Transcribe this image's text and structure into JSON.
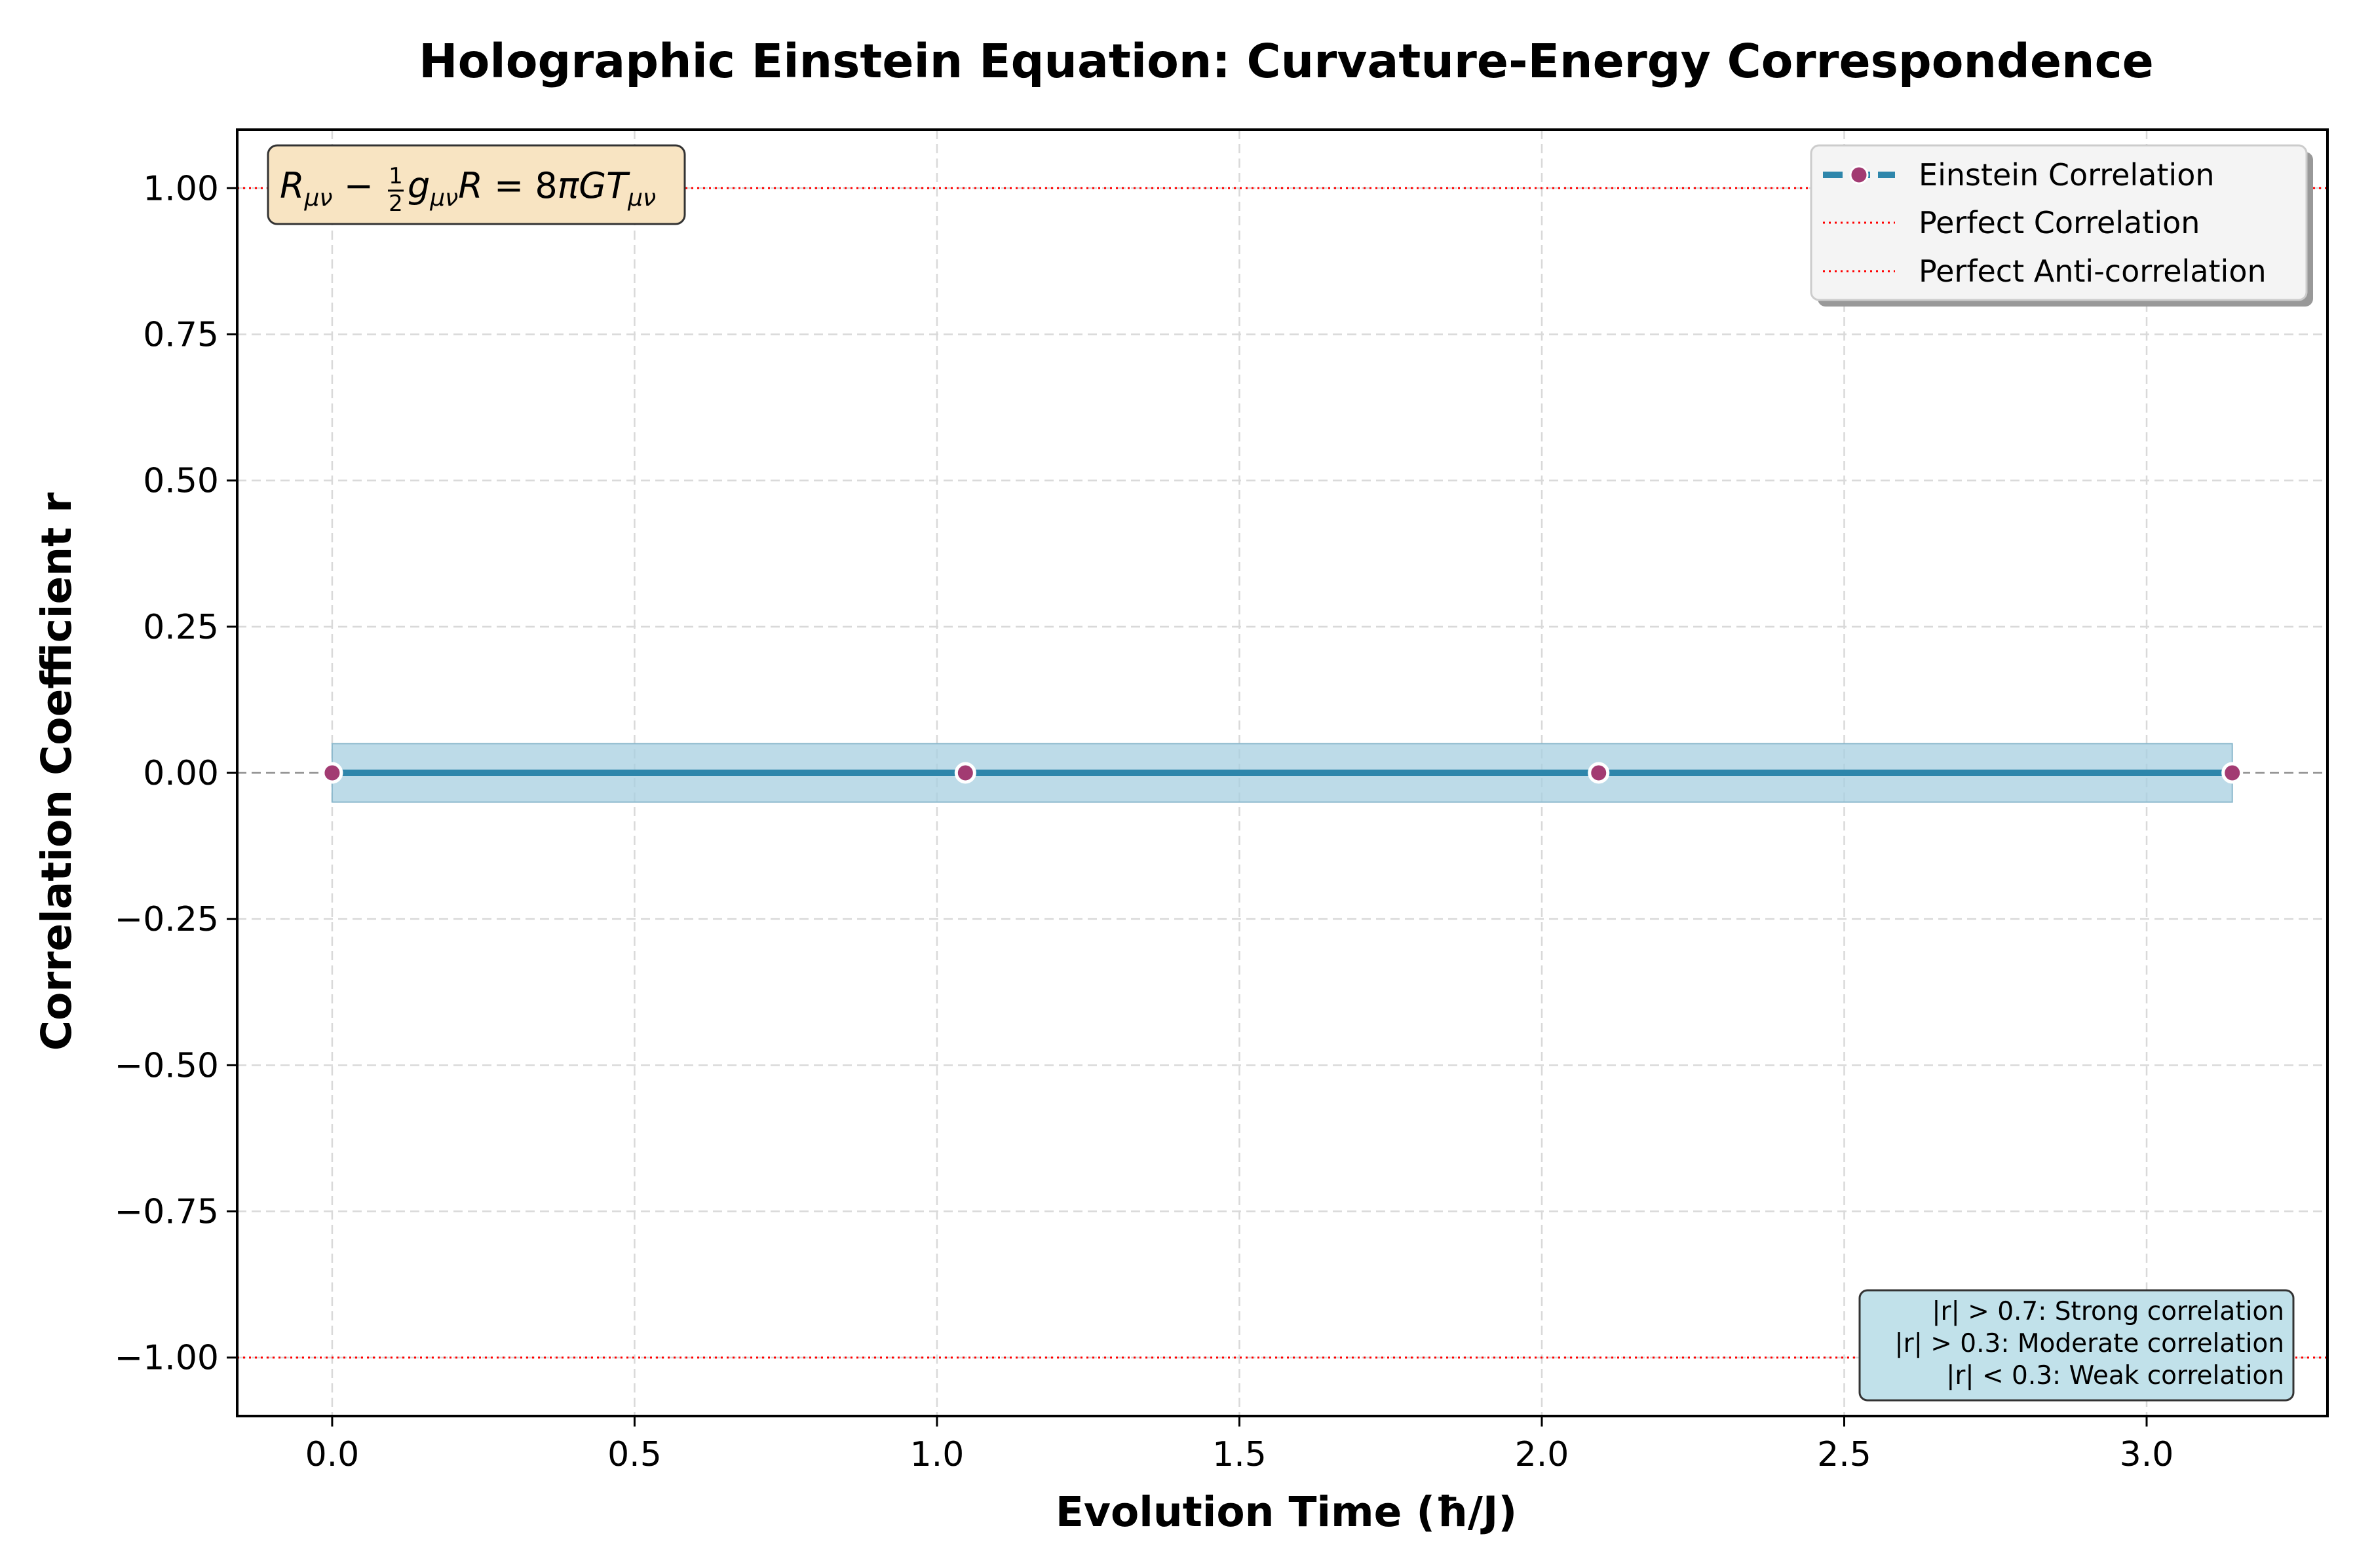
{
  "chart_data": {
    "type": "line",
    "title": "Holographic Einstein Equation: Curvature-Energy Correspondence",
    "xlabel": "Evolution Time (ħ/J)",
    "ylabel": "Correlation Coefficient r",
    "xlim": [
      -0.157,
      3.299
    ],
    "ylim": [
      -1.1,
      1.1
    ],
    "x_ticks": [
      0.0,
      0.5,
      1.0,
      1.5,
      2.0,
      2.5,
      3.0
    ],
    "x_tick_labels": [
      "0.0",
      "0.5",
      "1.0",
      "1.5",
      "2.0",
      "2.5",
      "3.0"
    ],
    "y_ticks": [
      1.0,
      0.75,
      0.5,
      0.25,
      0.0,
      -0.25,
      -0.5,
      -0.75,
      -1.0
    ],
    "y_tick_labels": [
      "1.00",
      "0.75",
      "0.50",
      "0.25",
      "0.00",
      "−0.25",
      "−0.50",
      "−0.75",
      "−1.00"
    ],
    "grid": true,
    "legend_position": "upper right",
    "series": [
      {
        "name": "Einstein Correlation",
        "x": [
          0.0,
          1.047,
          2.094,
          3.1416
        ],
        "y": [
          0.0,
          0.0,
          0.0,
          0.0
        ],
        "band_upper": [
          0.05,
          0.05,
          0.05,
          0.05
        ],
        "band_lower": [
          -0.05,
          -0.05,
          -0.05,
          -0.05
        ],
        "color": "#2e86ab",
        "marker_color": "#a23b72"
      }
    ],
    "reference_lines": [
      {
        "name": "Perfect Correlation",
        "y": 1.0,
        "color": "#ff0000"
      },
      {
        "name": "Perfect Anti-correlation",
        "y": -1.0,
        "color": "#ff0000"
      },
      {
        "name": "",
        "y": 0.0,
        "color": "#808080"
      }
    ],
    "equation_box": {
      "lhs1": "R",
      "lhs1_sub": "μν",
      "minus": " − ",
      "frac_num": "1",
      "frac_den": "2",
      "g": "g",
      "g_sub": "μν",
      "r": "R",
      "eq": " = 8",
      "pi": "π",
      "gt": "GT",
      "gt_sub": "μν"
    },
    "notes": [
      "|r| > 0.7: Strong correlation",
      "|r| > 0.3: Moderate correlation",
      "|r| < 0.3: Weak correlation"
    ]
  },
  "colors": {
    "line": "#2e86ab",
    "marker": "#a23b72",
    "band": "#a7cfe0",
    "reference": "#ff0000",
    "equation_box": "#f8e4c2",
    "note_box": "#c1e1ea"
  }
}
